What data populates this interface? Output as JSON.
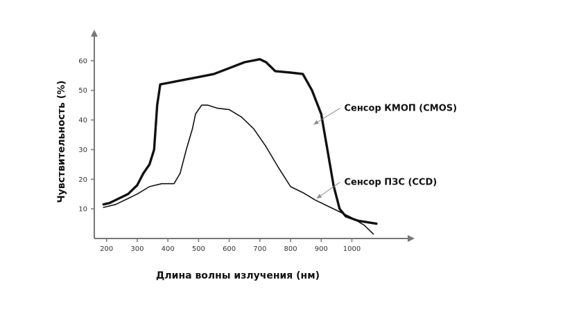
{
  "chart_data": {
    "type": "line",
    "xlabel": "Длина волны излучения (нм)",
    "ylabel": "Чувствительность (%)",
    "xticks": [
      200,
      300,
      400,
      500,
      600,
      700,
      800,
      900,
      1000
    ],
    "yticks": [
      10,
      20,
      30,
      40,
      50,
      60
    ],
    "xlim": [
      160,
      1200
    ],
    "ylim": [
      0,
      70
    ],
    "grid": false,
    "colors": {
      "axis": "#777777",
      "line": "#111111",
      "annotation": "#888888"
    },
    "series": [
      {
        "name": "Сенсор КМОП (CMOS)",
        "style": "thick",
        "points": [
          [
            190,
            11.5
          ],
          [
            210,
            12
          ],
          [
            240,
            13.5
          ],
          [
            270,
            15
          ],
          [
            300,
            18
          ],
          [
            320,
            22
          ],
          [
            340,
            25
          ],
          [
            355,
            30
          ],
          [
            365,
            45
          ],
          [
            375,
            52
          ],
          [
            400,
            52.5
          ],
          [
            450,
            53.5
          ],
          [
            500,
            54.5
          ],
          [
            550,
            55.5
          ],
          [
            600,
            57.5
          ],
          [
            650,
            59.5
          ],
          [
            700,
            60.5
          ],
          [
            720,
            59.5
          ],
          [
            750,
            56.5
          ],
          [
            800,
            56
          ],
          [
            840,
            55.5
          ],
          [
            870,
            50
          ],
          [
            900,
            42
          ],
          [
            920,
            30
          ],
          [
            940,
            18
          ],
          [
            960,
            10
          ],
          [
            980,
            7.5
          ],
          [
            1020,
            6
          ],
          [
            1080,
            5
          ]
        ]
      },
      {
        "name": "Сенсор ПЗС (CCD)",
        "style": "thin",
        "points": [
          [
            190,
            10.5
          ],
          [
            230,
            11.5
          ],
          [
            270,
            13.5
          ],
          [
            300,
            15
          ],
          [
            340,
            17.5
          ],
          [
            380,
            18.5
          ],
          [
            420,
            18.5
          ],
          [
            440,
            22
          ],
          [
            460,
            30
          ],
          [
            480,
            37
          ],
          [
            490,
            42
          ],
          [
            510,
            45
          ],
          [
            530,
            45
          ],
          [
            560,
            44
          ],
          [
            600,
            43.5
          ],
          [
            640,
            41
          ],
          [
            680,
            37
          ],
          [
            720,
            31
          ],
          [
            760,
            24
          ],
          [
            800,
            17.5
          ],
          [
            840,
            15.5
          ],
          [
            880,
            13
          ],
          [
            920,
            11
          ],
          [
            960,
            9
          ],
          [
            1000,
            7
          ],
          [
            1040,
            4.5
          ],
          [
            1070,
            1.5
          ]
        ]
      }
    ],
    "annotations": [
      {
        "label": "Сенсор КМОП (CMOS)",
        "text_at": [
          975,
          44
        ],
        "arrow_to": [
          875,
          38.5
        ]
      },
      {
        "label": "Сенсор ПЗС (CCD)",
        "text_at": [
          975,
          19
        ],
        "arrow_to": [
          885,
          13.5
        ]
      }
    ]
  }
}
